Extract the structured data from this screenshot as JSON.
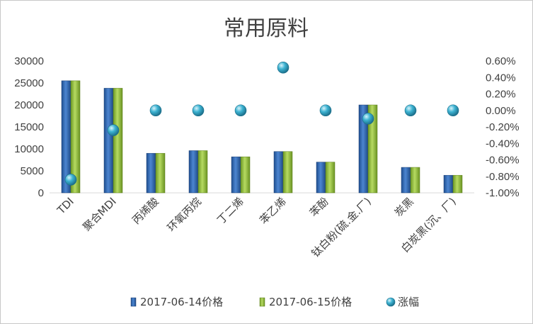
{
  "chart_data": {
    "type": "bar",
    "title": "常用原料",
    "categories": [
      "TDI",
      "聚合MDI",
      "丙烯酸",
      "环氧丙烷",
      "丁二烯",
      "苯乙烯",
      "苯酚",
      "钛白粉(硫.金.厂)",
      "炭黑",
      "白炭黑(沉、厂)"
    ],
    "series": [
      {
        "name": "2017-06-14价格",
        "axis": "left",
        "values": [
          25500,
          23800,
          9000,
          9600,
          8200,
          9400,
          7000,
          20000,
          5800,
          4000
        ],
        "color": "#2E5FA8"
      },
      {
        "name": "2017-06-15价格",
        "axis": "left",
        "values": [
          25500,
          23800,
          9000,
          9600,
          8200,
          9400,
          7000,
          20000,
          5800,
          4000
        ],
        "color": "#8DB83A"
      },
      {
        "name": "涨幅",
        "axis": "right",
        "type": "scatter",
        "values": [
          -0.84,
          -0.24,
          0.0,
          0.0,
          0.0,
          0.52,
          0.0,
          -0.1,
          0.0,
          0.0
        ],
        "color": "#2FA9C8"
      }
    ],
    "y_left": {
      "min": 0,
      "max": 30000,
      "ticks": [
        "0",
        "5000",
        "10000",
        "15000",
        "20000",
        "25000",
        "30000"
      ]
    },
    "y_right": {
      "min": -1.0,
      "max": 0.6,
      "unit": "%",
      "ticks": [
        "-1.00%",
        "-0.80%",
        "-0.60%",
        "-0.40%",
        "-0.20%",
        "0.00%",
        "0.20%",
        "0.40%",
        "0.60%"
      ]
    },
    "grid": false,
    "legend_position": "bottom"
  }
}
